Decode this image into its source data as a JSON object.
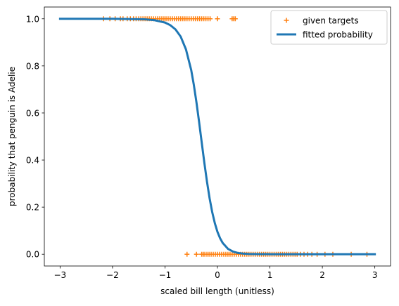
{
  "chart_data": {
    "type": "scatter",
    "xlabel": "scaled bill length (unitless)",
    "ylabel": "probability that penguin is Adelie",
    "xlim": [
      -3.3,
      3.3
    ],
    "ylim": [
      -0.05,
      1.05
    ],
    "xticks": [
      {
        "value": -3,
        "label": "−3"
      },
      {
        "value": -2,
        "label": "−2"
      },
      {
        "value": -1,
        "label": "−1"
      },
      {
        "value": 0,
        "label": "0"
      },
      {
        "value": 1,
        "label": "1"
      },
      {
        "value": 2,
        "label": "2"
      },
      {
        "value": 3,
        "label": "3"
      }
    ],
    "yticks": [
      {
        "value": 0.0,
        "label": "0.0"
      },
      {
        "value": 0.2,
        "label": "0.2"
      },
      {
        "value": 0.4,
        "label": "0.4"
      },
      {
        "value": 0.6,
        "label": "0.6"
      },
      {
        "value": 0.8,
        "label": "0.8"
      },
      {
        "value": 1.0,
        "label": "1.0"
      }
    ],
    "grid": false,
    "legend_position": "top-right",
    "series": [
      {
        "name": "given targets",
        "kind": "scatter",
        "marker": "plus",
        "color": "#ff7f0e",
        "points": [
          {
            "x": -2.17,
            "y": 1
          },
          {
            "x": -2.05,
            "y": 1
          },
          {
            "x": -1.95,
            "y": 1
          },
          {
            "x": -1.85,
            "y": 1
          },
          {
            "x": -1.8,
            "y": 1
          },
          {
            "x": -1.72,
            "y": 1
          },
          {
            "x": -1.66,
            "y": 1
          },
          {
            "x": -1.6,
            "y": 1
          },
          {
            "x": -1.55,
            "y": 1
          },
          {
            "x": -1.5,
            "y": 1
          },
          {
            "x": -1.46,
            "y": 1
          },
          {
            "x": -1.42,
            "y": 1
          },
          {
            "x": -1.38,
            "y": 1
          },
          {
            "x": -1.34,
            "y": 1
          },
          {
            "x": -1.3,
            "y": 1
          },
          {
            "x": -1.26,
            "y": 1
          },
          {
            "x": -1.22,
            "y": 1
          },
          {
            "x": -1.18,
            "y": 1
          },
          {
            "x": -1.14,
            "y": 1
          },
          {
            "x": -1.1,
            "y": 1
          },
          {
            "x": -1.06,
            "y": 1
          },
          {
            "x": -1.02,
            "y": 1
          },
          {
            "x": -0.98,
            "y": 1
          },
          {
            "x": -0.94,
            "y": 1
          },
          {
            "x": -0.9,
            "y": 1
          },
          {
            "x": -0.86,
            "y": 1
          },
          {
            "x": -0.82,
            "y": 1
          },
          {
            "x": -0.78,
            "y": 1
          },
          {
            "x": -0.74,
            "y": 1
          },
          {
            "x": -0.7,
            "y": 1
          },
          {
            "x": -0.66,
            "y": 1
          },
          {
            "x": -0.62,
            "y": 1
          },
          {
            "x": -0.58,
            "y": 1
          },
          {
            "x": -0.54,
            "y": 1
          },
          {
            "x": -0.5,
            "y": 1
          },
          {
            "x": -0.46,
            "y": 1
          },
          {
            "x": -0.42,
            "y": 1
          },
          {
            "x": -0.38,
            "y": 1
          },
          {
            "x": -0.34,
            "y": 1
          },
          {
            "x": -0.3,
            "y": 1
          },
          {
            "x": -0.26,
            "y": 1
          },
          {
            "x": -0.22,
            "y": 1
          },
          {
            "x": -0.18,
            "y": 1
          },
          {
            "x": -0.14,
            "y": 1
          },
          {
            "x": 0.0,
            "y": 1
          },
          {
            "x": 0.28,
            "y": 1
          },
          {
            "x": 0.31,
            "y": 1
          },
          {
            "x": 0.34,
            "y": 1
          },
          {
            "x": -0.58,
            "y": 0
          },
          {
            "x": -0.4,
            "y": 0
          },
          {
            "x": -0.3,
            "y": 0
          },
          {
            "x": -0.27,
            "y": 0
          },
          {
            "x": -0.24,
            "y": 0
          },
          {
            "x": -0.2,
            "y": 0
          },
          {
            "x": -0.16,
            "y": 0
          },
          {
            "x": -0.12,
            "y": 0
          },
          {
            "x": -0.08,
            "y": 0
          },
          {
            "x": -0.04,
            "y": 0
          },
          {
            "x": 0.0,
            "y": 0
          },
          {
            "x": 0.04,
            "y": 0
          },
          {
            "x": 0.08,
            "y": 0
          },
          {
            "x": 0.12,
            "y": 0
          },
          {
            "x": 0.16,
            "y": 0
          },
          {
            "x": 0.2,
            "y": 0
          },
          {
            "x": 0.24,
            "y": 0
          },
          {
            "x": 0.28,
            "y": 0
          },
          {
            "x": 0.32,
            "y": 0
          },
          {
            "x": 0.36,
            "y": 0
          },
          {
            "x": 0.4,
            "y": 0
          },
          {
            "x": 0.44,
            "y": 0
          },
          {
            "x": 0.48,
            "y": 0
          },
          {
            "x": 0.52,
            "y": 0
          },
          {
            "x": 0.56,
            "y": 0
          },
          {
            "x": 0.6,
            "y": 0
          },
          {
            "x": 0.64,
            "y": 0
          },
          {
            "x": 0.68,
            "y": 0
          },
          {
            "x": 0.72,
            "y": 0
          },
          {
            "x": 0.76,
            "y": 0
          },
          {
            "x": 0.8,
            "y": 0
          },
          {
            "x": 0.84,
            "y": 0
          },
          {
            "x": 0.88,
            "y": 0
          },
          {
            "x": 0.92,
            "y": 0
          },
          {
            "x": 0.96,
            "y": 0
          },
          {
            "x": 1.0,
            "y": 0
          },
          {
            "x": 1.04,
            "y": 0
          },
          {
            "x": 1.08,
            "y": 0
          },
          {
            "x": 1.12,
            "y": 0
          },
          {
            "x": 1.16,
            "y": 0
          },
          {
            "x": 1.2,
            "y": 0
          },
          {
            "x": 1.24,
            "y": 0
          },
          {
            "x": 1.28,
            "y": 0
          },
          {
            "x": 1.32,
            "y": 0
          },
          {
            "x": 1.36,
            "y": 0
          },
          {
            "x": 1.4,
            "y": 0
          },
          {
            "x": 1.44,
            "y": 0
          },
          {
            "x": 1.48,
            "y": 0
          },
          {
            "x": 1.52,
            "y": 0
          },
          {
            "x": 1.58,
            "y": 0
          },
          {
            "x": 1.65,
            "y": 0
          },
          {
            "x": 1.72,
            "y": 0
          },
          {
            "x": 1.8,
            "y": 0
          },
          {
            "x": 1.9,
            "y": 0
          },
          {
            "x": 2.05,
            "y": 0
          },
          {
            "x": 2.2,
            "y": 0
          },
          {
            "x": 2.55,
            "y": 0
          },
          {
            "x": 2.85,
            "y": 0
          }
        ]
      },
      {
        "name": "fitted probability",
        "kind": "line",
        "color": "#1f77b4",
        "x": [
          -3.0,
          -2.0,
          -1.4,
          -1.2,
          -1.0,
          -0.9,
          -0.8,
          -0.7,
          -0.6,
          -0.5,
          -0.45,
          -0.4,
          -0.35,
          -0.3,
          -0.25,
          -0.2,
          -0.15,
          -0.1,
          -0.05,
          0.0,
          0.05,
          0.1,
          0.2,
          0.3,
          0.4,
          0.5,
          0.6,
          0.8,
          1.0,
          1.5,
          2.0,
          3.0
        ],
        "y": [
          1.0,
          1.0,
          0.998,
          0.994,
          0.984,
          0.973,
          0.955,
          0.924,
          0.87,
          0.782,
          0.719,
          0.645,
          0.562,
          0.475,
          0.389,
          0.309,
          0.238,
          0.179,
          0.132,
          0.095,
          0.068,
          0.048,
          0.023,
          0.011,
          0.005,
          0.0025,
          0.0012,
          0.0003,
          0.0001,
          0.0,
          0.0,
          0.0
        ]
      }
    ]
  }
}
